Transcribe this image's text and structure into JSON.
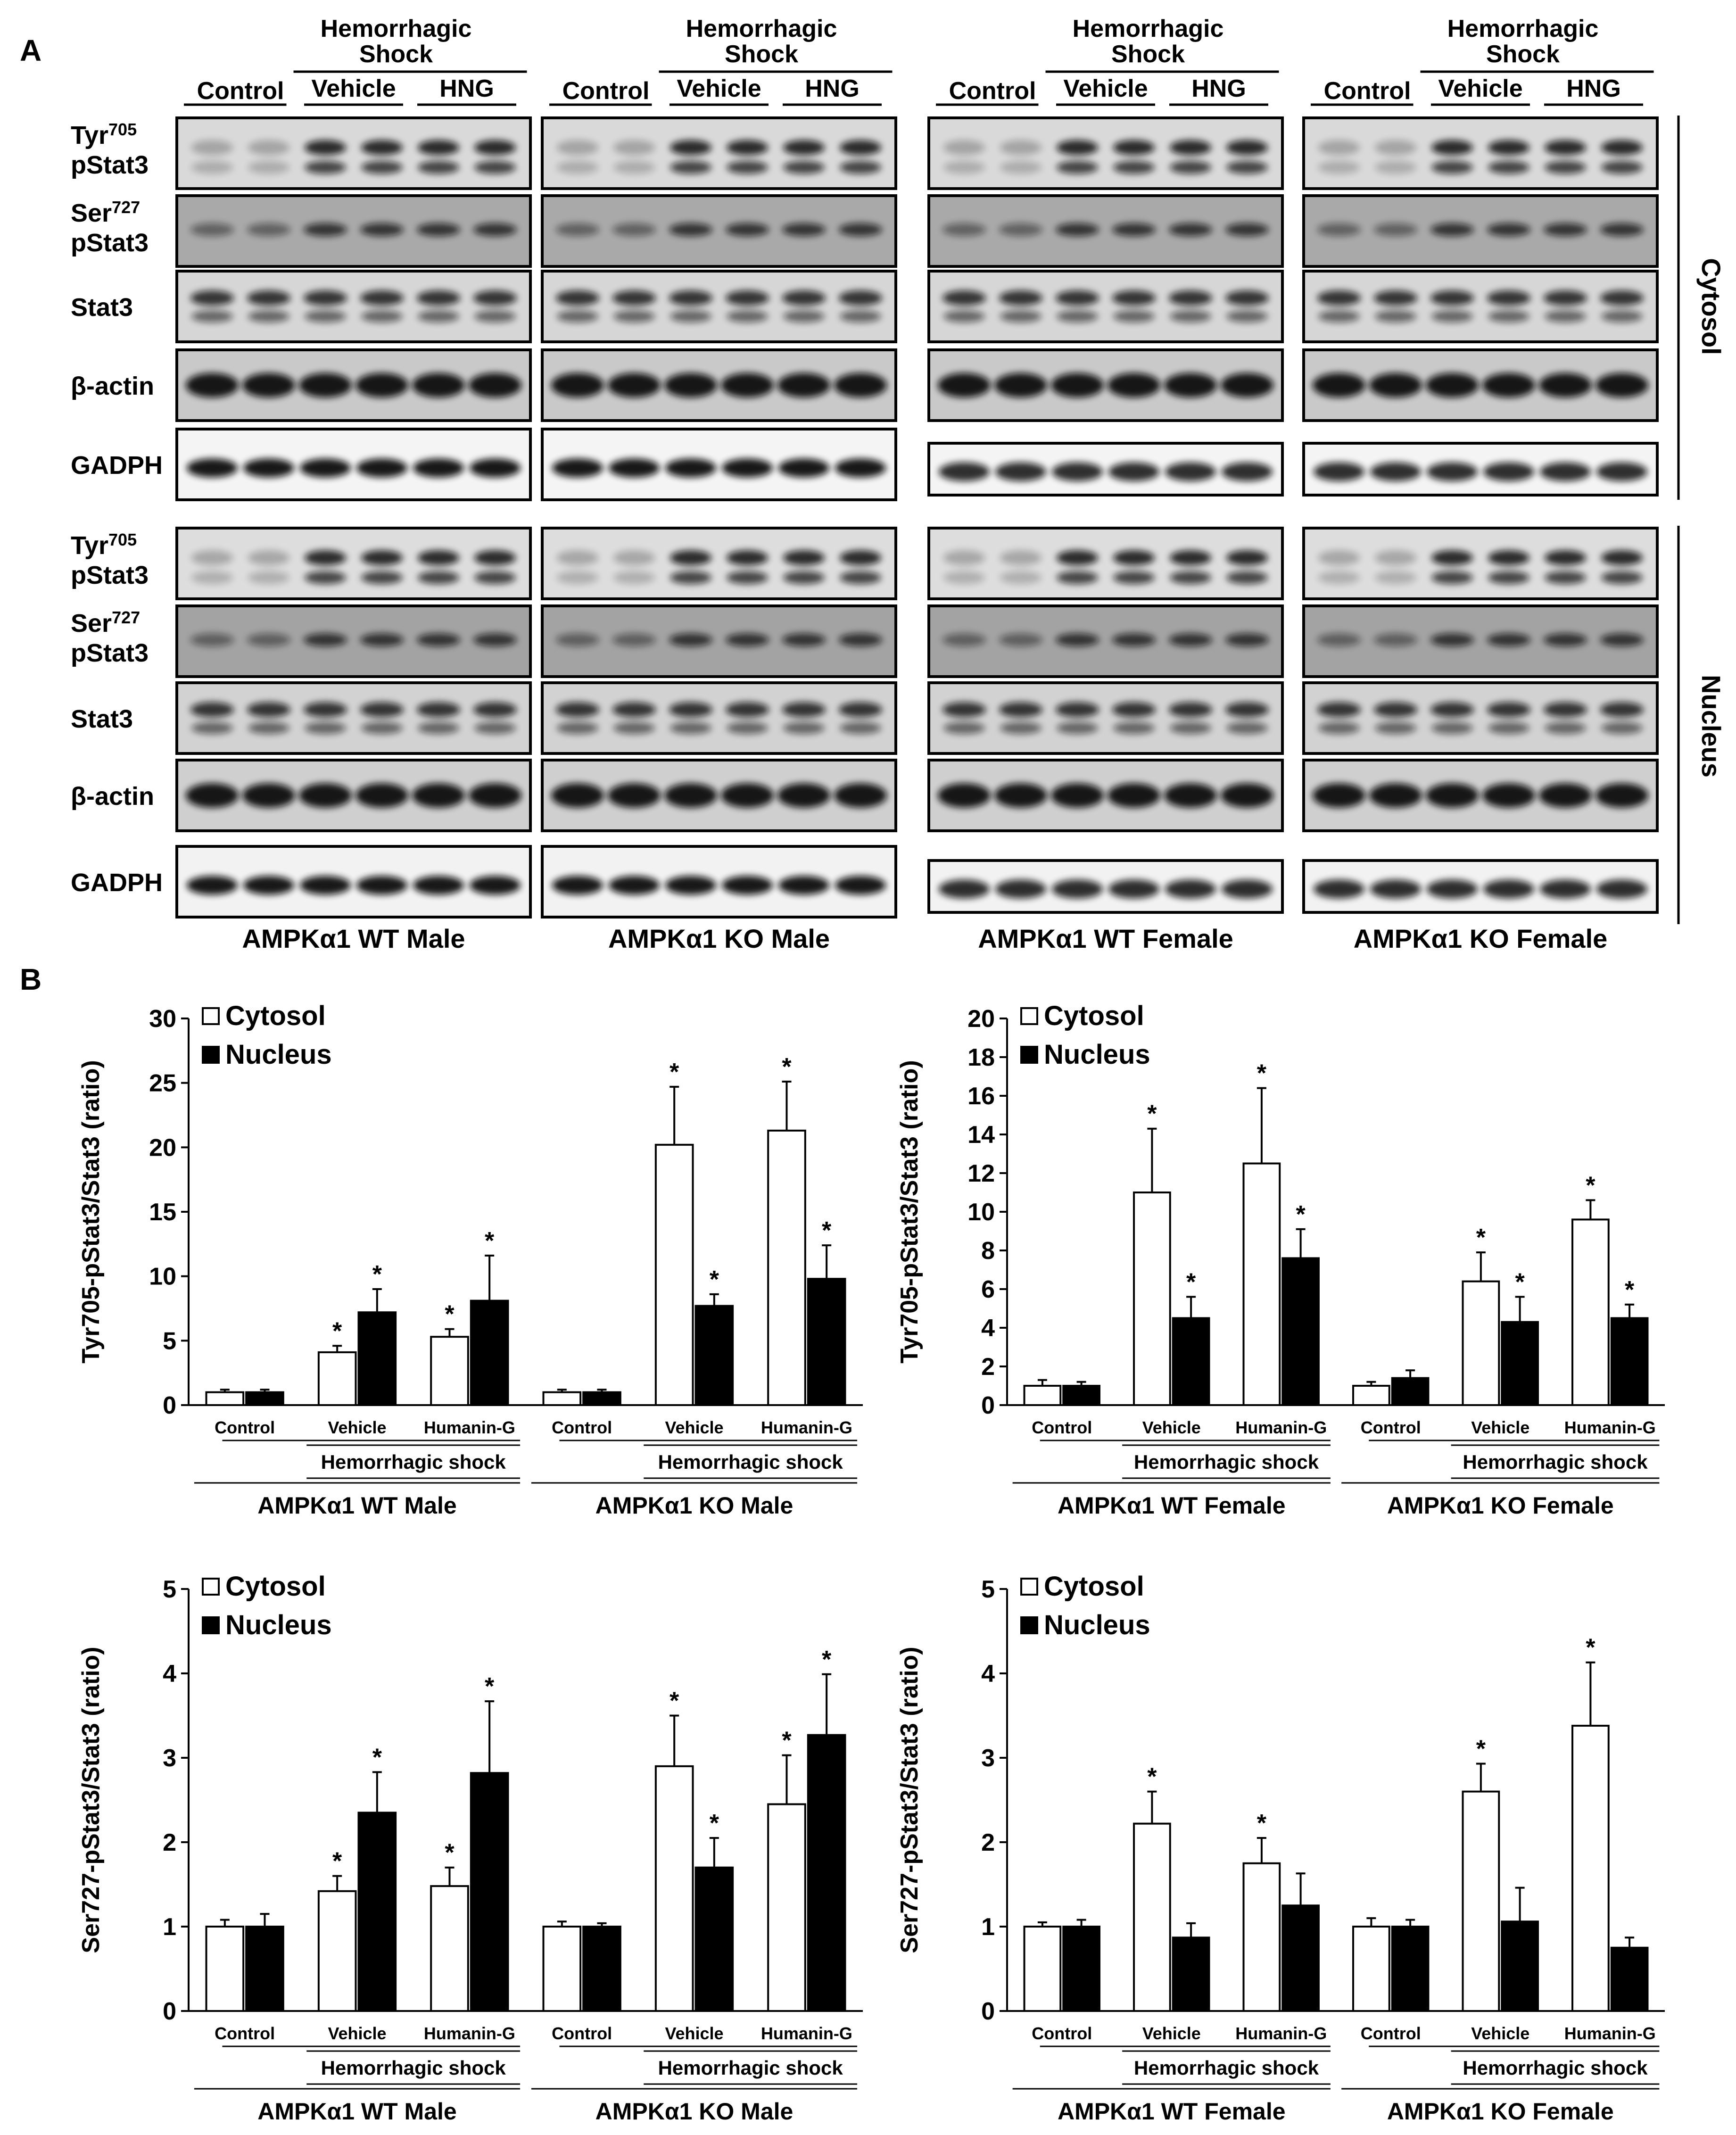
{
  "panels": {
    "a": "A",
    "b": "B"
  },
  "blot": {
    "groups": [
      {
        "caption": "AMPKα1 WT Male"
      },
      {
        "caption": "AMPKα1 KO Male"
      },
      {
        "caption": "AMPKα1 WT Female"
      },
      {
        "caption": "AMPKα1 KO Female"
      }
    ],
    "header": {
      "hs": "Hemorrhagic Shock",
      "control": "Control",
      "vehicle": "Vehicle",
      "hng": "HNG"
    },
    "rows": [
      {
        "label1": "Tyr",
        "sup": "705",
        "label2": "pStat3",
        "kind": "ptyr",
        "bg": "#d9d9d9"
      },
      {
        "label1": "Ser",
        "sup": "727",
        "label2": "pStat3",
        "kind": "pser",
        "bg": "#a9a9a9"
      },
      {
        "label1": "Stat3",
        "sup": "",
        "label2": "",
        "kind": "stat",
        "bg": "#d6d6d6"
      },
      {
        "label1": "β-actin",
        "sup": "",
        "label2": "",
        "kind": "actin",
        "bg": "#c9c9c9"
      },
      {
        "label1": "GADPH",
        "sup": "",
        "label2": "",
        "kind": "gapdh",
        "bg": "#f4f4f4"
      },
      {
        "label1": "Tyr",
        "sup": "705",
        "label2": "pStat3",
        "kind": "ptyr",
        "bg": "#dddddd"
      },
      {
        "label1": "Ser",
        "sup": "727",
        "label2": "pStat3",
        "kind": "pser",
        "bg": "#a3a3a3"
      },
      {
        "label1": "Stat3",
        "sup": "",
        "label2": "",
        "kind": "stat",
        "bg": "#d2d2d2"
      },
      {
        "label1": "β-actin",
        "sup": "",
        "label2": "",
        "kind": "actin",
        "bg": "#cfcfcf"
      },
      {
        "label1": "GADPH",
        "sup": "",
        "label2": "",
        "kind": "gapdh",
        "bg": "#f2f2f2"
      }
    ],
    "fractions": {
      "cytosol": "Cytosol",
      "nucleus": "Nucleus"
    }
  },
  "chart_data": [
    {
      "type": "bar",
      "ylabel": "Tyr705-pStat3/Stat3 (ratio)",
      "ylim": [
        0,
        30
      ],
      "yticks": [
        0,
        5,
        10,
        15,
        20,
        25,
        30
      ],
      "legend": [
        "Cytosol",
        "Nucleus"
      ],
      "categories": [
        "Control",
        "Vehicle",
        "Humanin-G",
        "Control",
        "Vehicle",
        "Humanin-G"
      ],
      "subgroup_label": "Hemorrhagic shock",
      "groups": [
        "AMPKα1 WT Male",
        "AMPKα1 KO Male"
      ],
      "series": [
        {
          "name": "Cytosol",
          "values": [
            1.0,
            4.1,
            5.3,
            1.0,
            20.2,
            21.3
          ],
          "errors": [
            0.2,
            0.5,
            0.6,
            0.2,
            4.5,
            3.8
          ],
          "sig": [
            false,
            true,
            true,
            false,
            true,
            true
          ]
        },
        {
          "name": "Nucleus",
          "values": [
            1.0,
            7.2,
            8.1,
            1.0,
            7.7,
            9.8
          ],
          "errors": [
            0.2,
            1.8,
            3.5,
            0.2,
            0.9,
            2.6
          ],
          "sig": [
            false,
            true,
            true,
            false,
            true,
            true
          ]
        }
      ]
    },
    {
      "type": "bar",
      "ylabel": "Tyr705-pStat3/Stat3 (ratio)",
      "ylim": [
        0,
        20
      ],
      "yticks": [
        0,
        2,
        4,
        6,
        8,
        10,
        12,
        14,
        16,
        18,
        20
      ],
      "legend": [
        "Cytosol",
        "Nucleus"
      ],
      "categories": [
        "Control",
        "Vehicle",
        "Humanin-G",
        "Control",
        "Vehicle",
        "Humanin-G"
      ],
      "subgroup_label": "Hemorrhagic shock",
      "groups": [
        "AMPKα1 WT Female",
        "AMPKα1 KO Female"
      ],
      "series": [
        {
          "name": "Cytosol",
          "values": [
            1.0,
            11.0,
            12.5,
            1.0,
            6.4,
            9.6
          ],
          "errors": [
            0.3,
            3.3,
            3.9,
            0.2,
            1.5,
            1.0
          ],
          "sig": [
            false,
            true,
            true,
            false,
            true,
            true
          ]
        },
        {
          "name": "Nucleus",
          "values": [
            1.0,
            4.5,
            7.6,
            1.4,
            4.3,
            4.5
          ],
          "errors": [
            0.2,
            1.1,
            1.5,
            0.4,
            1.3,
            0.7
          ],
          "sig": [
            false,
            true,
            true,
            false,
            true,
            true
          ]
        }
      ]
    },
    {
      "type": "bar",
      "ylabel": "Ser727-pStat3/Stat3 (ratio)",
      "ylim": [
        0,
        5
      ],
      "yticks": [
        0,
        1,
        2,
        3,
        4,
        5
      ],
      "legend": [
        "Cytosol",
        "Nucleus"
      ],
      "categories": [
        "Control",
        "Vehicle",
        "Humanin-G",
        "Control",
        "Vehicle",
        "Humanin-G"
      ],
      "subgroup_label": "Hemorrhagic shock",
      "groups": [
        "AMPKα1 WT Male",
        "AMPKα1 KO Male"
      ],
      "series": [
        {
          "name": "Cytosol",
          "values": [
            1.0,
            1.42,
            1.48,
            1.0,
            2.9,
            2.45
          ],
          "errors": [
            0.08,
            0.18,
            0.22,
            0.06,
            0.6,
            0.58
          ],
          "sig": [
            false,
            true,
            true,
            false,
            true,
            true
          ]
        },
        {
          "name": "Nucleus",
          "values": [
            1.0,
            2.35,
            2.82,
            1.0,
            1.7,
            3.27
          ],
          "errors": [
            0.15,
            0.48,
            0.85,
            0.04,
            0.35,
            0.72
          ],
          "sig": [
            false,
            true,
            true,
            false,
            true,
            true
          ]
        }
      ]
    },
    {
      "type": "bar",
      "ylabel": "Ser727-pStat3/Stat3 (ratio)",
      "ylim": [
        0,
        5
      ],
      "yticks": [
        0,
        1,
        2,
        3,
        4,
        5
      ],
      "legend": [
        "Cytosol",
        "Nucleus"
      ],
      "categories": [
        "Control",
        "Vehicle",
        "Humanin-G",
        "Control",
        "Vehicle",
        "Humanin-G"
      ],
      "subgroup_label": "Hemorrhagic shock",
      "groups": [
        "AMPKα1 WT Female",
        "AMPKα1 KO Female"
      ],
      "series": [
        {
          "name": "Cytosol",
          "values": [
            1.0,
            2.22,
            1.75,
            1.0,
            2.6,
            3.38
          ],
          "errors": [
            0.05,
            0.38,
            0.3,
            0.1,
            0.33,
            0.75
          ],
          "sig": [
            false,
            true,
            true,
            false,
            true,
            true
          ]
        },
        {
          "name": "Nucleus",
          "values": [
            1.0,
            0.87,
            1.25,
            1.0,
            1.06,
            0.75
          ],
          "errors": [
            0.08,
            0.17,
            0.38,
            0.08,
            0.4,
            0.12
          ],
          "sig": [
            false,
            false,
            false,
            false,
            false,
            false
          ]
        }
      ]
    }
  ]
}
